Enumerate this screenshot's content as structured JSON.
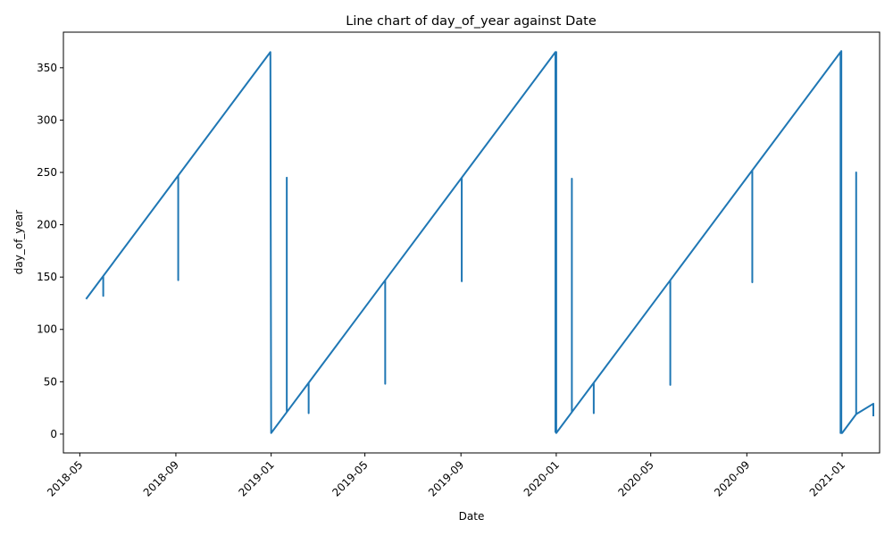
{
  "chart_data": {
    "type": "line",
    "title": "Line chart of day_of_year against Date",
    "xlabel": "Date",
    "ylabel": "day_of_year",
    "xlim": [
      "2018-04-10",
      "2021-02-18"
    ],
    "ylim": [
      -18,
      384
    ],
    "grid": false,
    "x_ticks": [
      "2018-05",
      "2018-09",
      "2019-01",
      "2019-05",
      "2019-09",
      "2020-01",
      "2020-05",
      "2020-09",
      "2021-01"
    ],
    "y_ticks": [
      0,
      50,
      100,
      150,
      200,
      250,
      300,
      350
    ],
    "series": [
      {
        "color": "#1f77b4",
        "x": [
          "2018-05-09",
          "2018-05-31",
          "2018-05-31",
          "2018-05-31",
          "2018-09-04",
          "2018-09-04",
          "2018-09-04",
          "2018-12-31",
          "2019-01-01",
          "2019-01-21",
          "2019-01-21",
          "2019-01-21",
          "2019-02-18",
          "2019-02-18",
          "2019-02-18",
          "2019-05-27",
          "2019-05-27",
          "2019-05-27",
          "2019-09-02",
          "2019-09-02",
          "2019-09-02",
          "2019-12-31",
          "2019-12-31",
          "2020-01-01",
          "2020-01-01",
          "2020-01-21",
          "2020-01-21",
          "2020-01-21",
          "2020-02-18",
          "2020-02-18",
          "2020-02-18",
          "2020-05-26",
          "2020-05-26",
          "2020-05-26",
          "2020-09-08",
          "2020-09-08",
          "2020-09-08",
          "2020-12-30",
          "2020-12-30",
          "2020-12-31",
          "2020-12-31",
          "2021-01-01",
          "2021-01-19",
          "2021-01-19",
          "2021-01-19",
          "2021-02-10",
          "2021-02-10"
        ],
        "y": [
          129,
          151,
          132,
          151,
          247,
          147,
          247,
          365,
          1,
          21,
          245,
          21,
          49,
          20,
          49,
          147,
          48,
          147,
          245,
          146,
          245,
          365,
          2,
          365,
          1,
          21,
          244,
          21,
          49,
          20,
          49,
          147,
          47,
          147,
          252,
          145,
          252,
          365,
          1,
          366,
          1,
          1,
          19,
          250,
          19,
          29,
          17
        ]
      }
    ]
  }
}
